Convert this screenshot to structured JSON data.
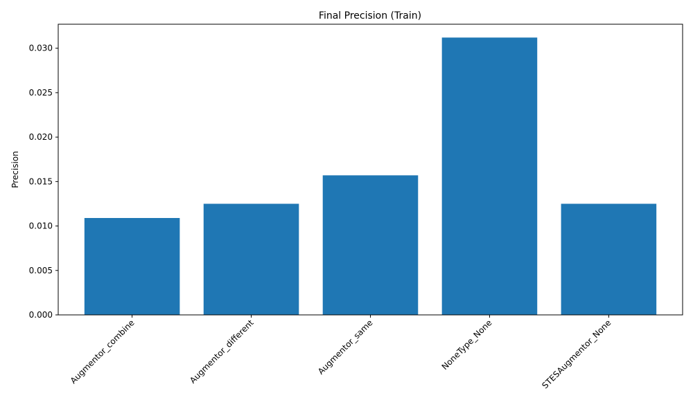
{
  "chart_data": {
    "type": "bar",
    "title": "Final Precision (Train)",
    "xlabel": "",
    "ylabel": "Precision",
    "categories": [
      "Augmentor_combine",
      "Augmentor_different",
      "Augmentor_same",
      "NoneType_None",
      "STESAugmentor_None"
    ],
    "values": [
      0.0109,
      0.0125,
      0.0157,
      0.0312,
      0.0125
    ],
    "ylim": [
      0,
      0.0327
    ],
    "yticks": [
      0.0,
      0.005,
      0.01,
      0.015,
      0.02,
      0.025,
      0.03
    ],
    "ytick_labels": [
      "0.000",
      "0.005",
      "0.010",
      "0.015",
      "0.020",
      "0.025",
      "0.030"
    ],
    "grid": false,
    "legend": "none",
    "bar_color": "#1f77b4"
  }
}
